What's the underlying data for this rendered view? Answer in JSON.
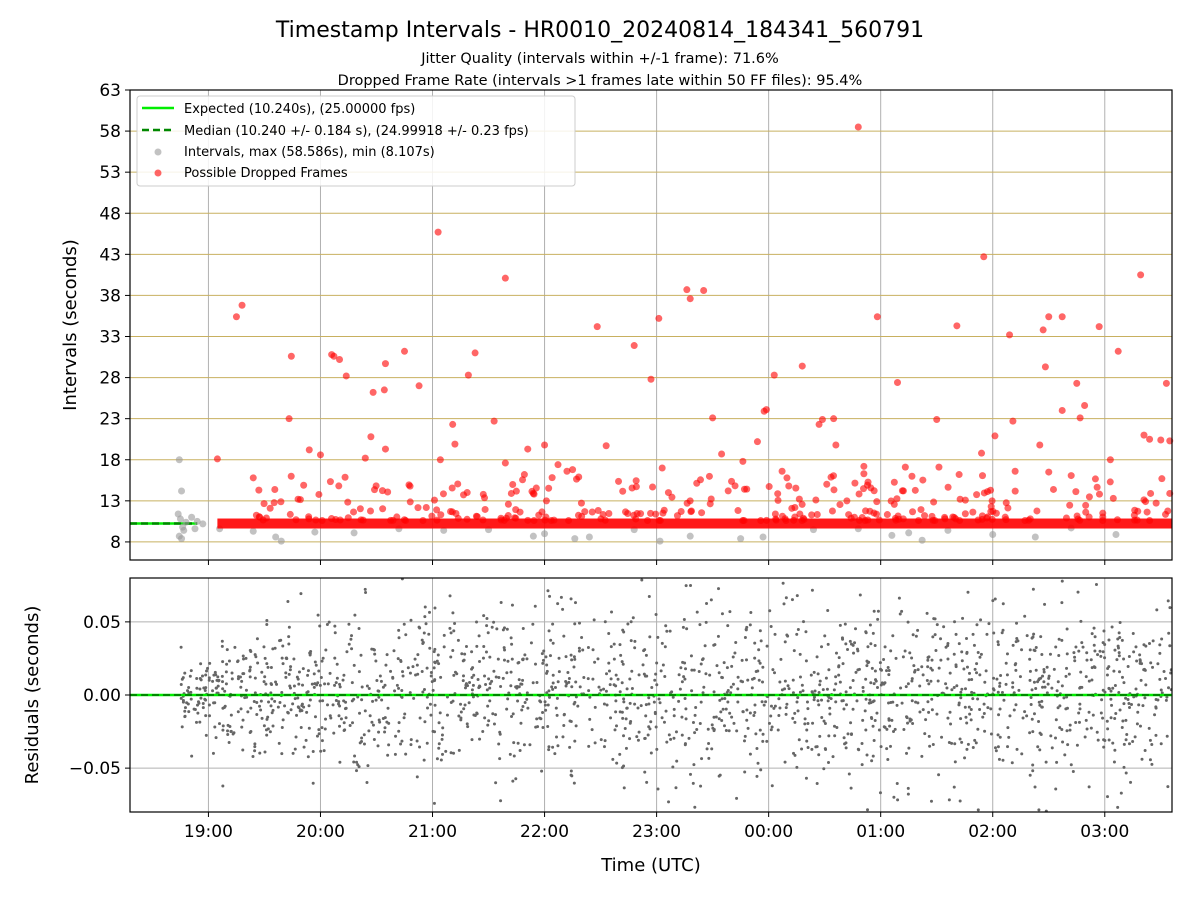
{
  "figure": {
    "title": "Timestamp Intervals - HR0010_20240814_184341_560791",
    "subtitle_1": "Jitter Quality (intervals within +/-1 frame): 71.6%",
    "subtitle_2": "Dropped Frame Rate (intervals >1 frames late within 50 FF files): 95.4%"
  },
  "chart_data": [
    {
      "type": "scatter",
      "panel": "top",
      "ylabel": "Intervals (seconds)",
      "xlabel": "",
      "xlim_hours": [
        18.3,
        27.6
      ],
      "ylim": [
        5.8,
        63
      ],
      "yticks": [
        8,
        13,
        18,
        23,
        28,
        33,
        38,
        43,
        48,
        53,
        58,
        63
      ],
      "legend_position": "upper-left",
      "grid": {
        "vertical": true,
        "horizontal": true,
        "horizontal_color": "#c8b060",
        "vertical_color": "#b0b0b0"
      },
      "reference_lines": {
        "expected": {
          "label": "Expected (10.240s), (25.00000 fps)",
          "y": 10.24,
          "color": "#00ee00",
          "style": "solid"
        },
        "median": {
          "label": "Median (10.240 +/- 0.184 s), (24.99918 +/- 0.23 fps)",
          "y": 10.24,
          "color": "#008800",
          "style": "dashed",
          "x_end_hours": 18.9
        }
      },
      "series": [
        {
          "name": "Intervals, max (58.586s), min (8.107s)",
          "color": "#999999",
          "points": [
            [
              18.74,
              18.0
            ],
            [
              18.76,
              14.2
            ],
            [
              18.73,
              11.4
            ],
            [
              18.75,
              10.8
            ],
            [
              18.77,
              9.8
            ],
            [
              18.74,
              8.7
            ],
            [
              18.76,
              8.4
            ],
            [
              18.78,
              9.4
            ],
            [
              18.85,
              11.0
            ],
            [
              18.9,
              10.5
            ],
            [
              18.95,
              10.2
            ],
            [
              18.8,
              10.4
            ],
            [
              18.88,
              9.6
            ],
            [
              19.1,
              9.6
            ],
            [
              19.4,
              9.3
            ],
            [
              19.6,
              8.6
            ],
            [
              19.65,
              8.1
            ],
            [
              19.95,
              9.2
            ],
            [
              20.3,
              9.1
            ],
            [
              20.7,
              9.6
            ],
            [
              21.1,
              9.4
            ],
            [
              21.5,
              9.5
            ],
            [
              21.9,
              8.7
            ],
            [
              22.0,
              9.0
            ],
            [
              22.27,
              8.4
            ],
            [
              22.4,
              8.6
            ],
            [
              22.8,
              9.5
            ],
            [
              23.03,
              8.1
            ],
            [
              23.3,
              8.7
            ],
            [
              23.75,
              8.4
            ],
            [
              23.95,
              8.6
            ],
            [
              24.4,
              9.5
            ],
            [
              24.8,
              9.6
            ],
            [
              25.1,
              8.8
            ],
            [
              25.25,
              9.1
            ],
            [
              25.37,
              8.2
            ],
            [
              25.6,
              9.4
            ],
            [
              26.0,
              8.9
            ],
            [
              26.38,
              8.6
            ],
            [
              26.7,
              9.7
            ],
            [
              27.1,
              8.9
            ]
          ]
        },
        {
          "name": "Possible Dropped Frames",
          "color": "#ff0000",
          "points": [
            [
              19.08,
              18.1
            ],
            [
              19.25,
              35.4
            ],
            [
              19.3,
              36.8
            ],
            [
              19.4,
              15.8
            ],
            [
              19.45,
              14.3
            ],
            [
              19.72,
              23.0
            ],
            [
              19.74,
              30.6
            ],
            [
              19.8,
              13.2
            ],
            [
              19.85,
              14.9
            ],
            [
              19.9,
              19.2
            ],
            [
              20.0,
              18.6
            ],
            [
              20.1,
              30.8
            ],
            [
              20.12,
              30.6
            ],
            [
              20.17,
              30.2
            ],
            [
              20.23,
              28.2
            ],
            [
              20.4,
              18.2
            ],
            [
              20.45,
              20.8
            ],
            [
              20.47,
              26.2
            ],
            [
              20.57,
              26.5
            ],
            [
              20.58,
              29.7
            ],
            [
              20.58,
              19.3
            ],
            [
              20.75,
              31.2
            ],
            [
              20.88,
              27.0
            ],
            [
              21.05,
              45.7
            ],
            [
              21.07,
              18.0
            ],
            [
              21.18,
              22.3
            ],
            [
              21.2,
              19.9
            ],
            [
              21.32,
              28.3
            ],
            [
              21.38,
              31.0
            ],
            [
              21.55,
              22.7
            ],
            [
              21.65,
              40.1
            ],
            [
              21.65,
              17.6
            ],
            [
              21.82,
              16.2
            ],
            [
              21.85,
              19.3
            ],
            [
              22.0,
              19.8
            ],
            [
              22.12,
              17.4
            ],
            [
              22.2,
              16.6
            ],
            [
              22.25,
              16.8
            ],
            [
              22.47,
              34.2
            ],
            [
              22.55,
              19.7
            ],
            [
              22.8,
              31.9
            ],
            [
              22.95,
              27.8
            ],
            [
              23.02,
              35.2
            ],
            [
              23.05,
              17.0
            ],
            [
              23.27,
              38.7
            ],
            [
              23.3,
              37.6
            ],
            [
              23.42,
              38.6
            ],
            [
              23.5,
              23.1
            ],
            [
              23.58,
              18.7
            ],
            [
              23.77,
              17.8
            ],
            [
              23.9,
              20.2
            ],
            [
              23.96,
              23.9
            ],
            [
              23.98,
              24.1
            ],
            [
              24.05,
              28.3
            ],
            [
              24.12,
              16.6
            ],
            [
              24.3,
              29.4
            ],
            [
              24.45,
              22.3
            ],
            [
              24.48,
              22.9
            ],
            [
              24.58,
              23.0
            ],
            [
              24.6,
              19.8
            ],
            [
              24.8,
              58.5
            ],
            [
              24.85,
              17.2
            ],
            [
              24.85,
              16.3
            ],
            [
              24.97,
              35.4
            ],
            [
              25.15,
              27.4
            ],
            [
              25.22,
              17.1
            ],
            [
              25.5,
              22.9
            ],
            [
              25.52,
              17.1
            ],
            [
              25.68,
              34.3
            ],
            [
              25.7,
              16.2
            ],
            [
              25.9,
              18.8
            ],
            [
              25.92,
              42.7
            ],
            [
              26.02,
              20.9
            ],
            [
              26.15,
              33.2
            ],
            [
              26.18,
              22.7
            ],
            [
              26.2,
              16.6
            ],
            [
              26.42,
              19.8
            ],
            [
              26.45,
              33.8
            ],
            [
              26.47,
              29.3
            ],
            [
              26.5,
              35.4
            ],
            [
              26.5,
              16.5
            ],
            [
              26.62,
              35.4
            ],
            [
              26.62,
              24.0
            ],
            [
              26.75,
              27.3
            ],
            [
              26.78,
              23.1
            ],
            [
              26.82,
              24.6
            ],
            [
              26.95,
              34.2
            ],
            [
              27.05,
              18.0
            ],
            [
              27.12,
              31.2
            ],
            [
              27.32,
              40.5
            ],
            [
              27.35,
              21.0
            ],
            [
              27.4,
              20.5
            ],
            [
              27.5,
              20.4
            ],
            [
              27.55,
              27.3
            ],
            [
              27.58,
              20.3
            ],
            [
              27.58,
              13.9
            ]
          ]
        }
      ]
    },
    {
      "type": "scatter",
      "panel": "bottom",
      "xlabel": "Time (UTC)",
      "ylabel": "Residuals (seconds)",
      "xlim_hours": [
        18.3,
        27.6
      ],
      "ylim": [
        -0.08,
        0.08
      ],
      "yticks": [
        0.05,
        0.0,
        -0.05
      ],
      "ytick_labels": [
        "0.05",
        "0.00",
        "−0.05"
      ],
      "xtick_hours": [
        19,
        20,
        21,
        22,
        23,
        24,
        25,
        26,
        27
      ],
      "xtick_labels": [
        "19:00",
        "20:00",
        "21:00",
        "22:00",
        "23:00",
        "00:00",
        "01:00",
        "02:00",
        "03:00"
      ],
      "grid": {
        "vertical": true,
        "horizontal": true,
        "color": "#b0b0b0"
      },
      "reference_lines": {
        "expected": {
          "y": 0.0,
          "color": "#00ee00",
          "style": "solid"
        },
        "median": {
          "y": 0.0,
          "color": "#008800",
          "style": "dashed"
        }
      },
      "series": [
        {
          "name": "Residuals",
          "color": "#666666",
          "points_description": "dense scatter of roughly 2000 residual points between 18:45 and 03:35 UTC, spread about 0.00 s within approximately ±0.08 s (tightest near 18:45-19:00, widest after 20:00)",
          "x_range_hours": [
            18.75,
            27.6
          ],
          "y_spread": 0.08
        }
      ]
    }
  ]
}
